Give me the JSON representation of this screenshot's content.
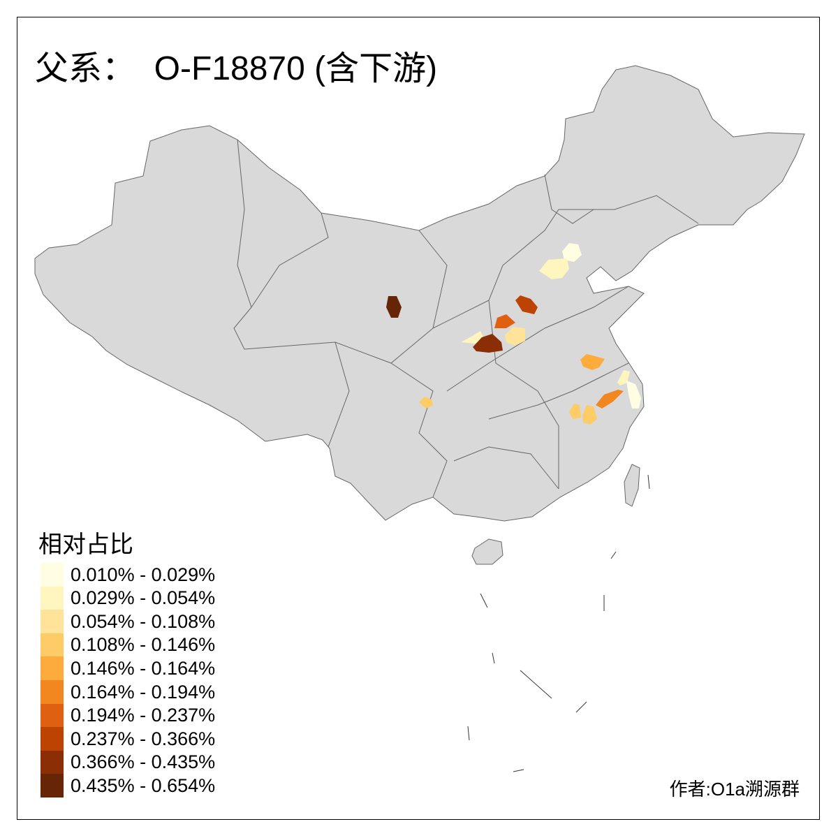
{
  "title": "父系：  O-F18870 (含下游)",
  "legend": {
    "title": "相对占比",
    "items": [
      {
        "label": "0.010% - 0.029%",
        "color": "#FFFEE3"
      },
      {
        "label": "0.029% - 0.054%",
        "color": "#FEF5BF"
      },
      {
        "label": "0.054% - 0.108%",
        "color": "#FEE399"
      },
      {
        "label": "0.108% - 0.146%",
        "color": "#FECC66"
      },
      {
        "label": "0.146% - 0.164%",
        "color": "#FDAB3D"
      },
      {
        "label": "0.164% - 0.194%",
        "color": "#F3871F"
      },
      {
        "label": "0.194% - 0.237%",
        "color": "#DF6010"
      },
      {
        "label": "0.237% - 0.366%",
        "color": "#BD4303"
      },
      {
        "label": "0.366% - 0.435%",
        "color": "#8C2E05"
      },
      {
        "label": "0.435% - 0.654%",
        "color": "#662506"
      }
    ]
  },
  "map": {
    "base_color": "#D9D9D9",
    "border_color": "#666666"
  },
  "author": "作者:O1a溯源群"
}
